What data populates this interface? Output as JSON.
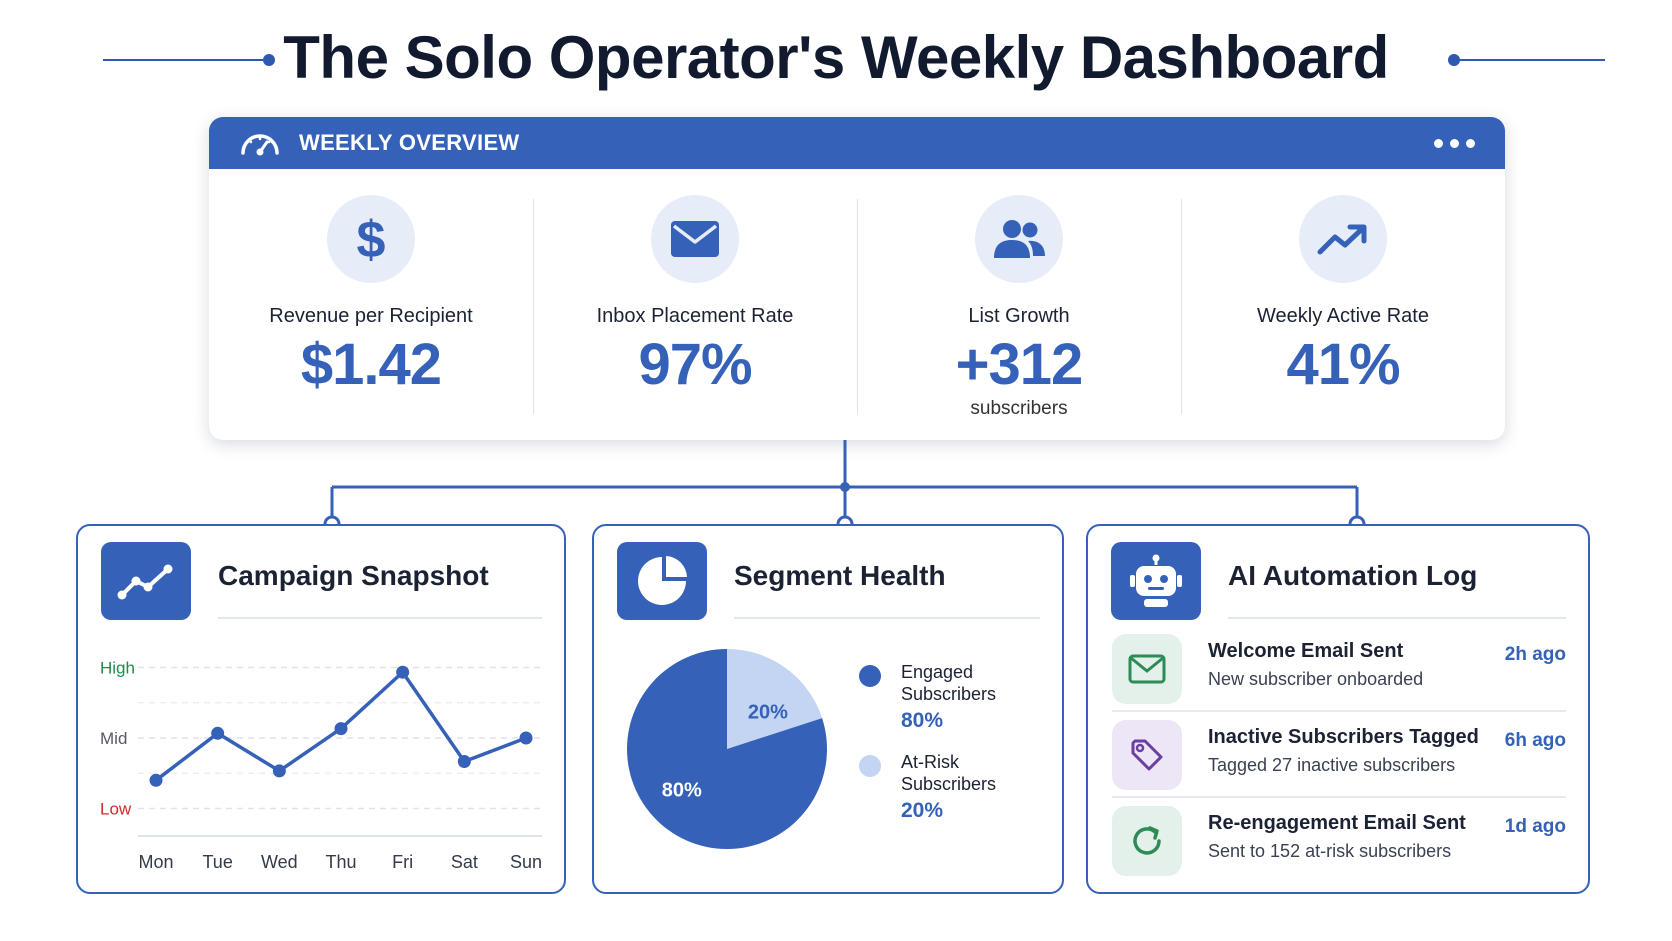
{
  "page": {
    "title": "The Solo Operator's Weekly Dashboard"
  },
  "overview": {
    "title": "WEEKLY OVERVIEW",
    "kpis": [
      {
        "label": "Revenue per Recipient",
        "value": "$1.42",
        "icon": "dollar-icon"
      },
      {
        "label": "Inbox Placement Rate",
        "value": "97%",
        "icon": "envelope-icon"
      },
      {
        "label": "List Growth",
        "value": "+312",
        "sub": "subscribers",
        "icon": "users-icon"
      },
      {
        "label": "Weekly Active Rate",
        "value": "41%",
        "icon": "trending-up-icon"
      }
    ]
  },
  "campaign": {
    "title": "Campaign Snapshot",
    "chart_data": {
      "type": "line",
      "categories": [
        "Mon",
        "Tue",
        "Wed",
        "Thu",
        "Fri",
        "Sat",
        "Sun"
      ],
      "values": [
        0.15,
        0.65,
        0.25,
        0.7,
        1.3,
        0.35,
        0.6
      ],
      "y_tick_labels": [
        {
          "label": "High",
          "value": 1.35,
          "color": "#1f8a4c"
        },
        {
          "label": "Mid",
          "value": 0.6,
          "color": "#555b66"
        },
        {
          "label": "Low",
          "value": -0.15,
          "color": "#d02b2b"
        }
      ],
      "ylim": [
        -0.4,
        1.6
      ],
      "grid": true,
      "line_color": "#3562b8"
    }
  },
  "segment": {
    "title": "Segment Health",
    "chart_data": {
      "type": "pie",
      "slices": [
        {
          "label": "Engaged Subscribers",
          "value": 80,
          "display": "80%",
          "color": "#3562b8"
        },
        {
          "label": "At-Risk Subscribers",
          "value": 20,
          "display": "20%",
          "color": "#c3d5f3"
        }
      ]
    },
    "legend": [
      {
        "name_line1": "Engaged",
        "name_line2": "Subscribers",
        "value": "80%",
        "color": "#3562b8"
      },
      {
        "name_line1": "At-Risk",
        "name_line2": "Subscribers",
        "value": "20%",
        "color": "#c3d5f3"
      }
    ]
  },
  "automation": {
    "title": "AI Automation Log",
    "items": [
      {
        "title": "Welcome Email Sent",
        "desc": "New subscriber onboarded",
        "time": "2h ago",
        "icon": "envelope-icon",
        "tint": "#e3f1ea",
        "stroke": "#2e8b57"
      },
      {
        "title": "Inactive Subscribers Tagged",
        "desc": "Tagged 27 inactive subscribers",
        "time": "6h ago",
        "icon": "tag-icon",
        "tint": "#ece6f6",
        "stroke": "#6b3fa0"
      },
      {
        "title": "Re-engagement Email Sent",
        "desc": "Sent to 152 at-risk subscribers",
        "time": "1d ago",
        "icon": "refresh-icon",
        "tint": "#e3f1ea",
        "stroke": "#2e8b57"
      }
    ]
  }
}
